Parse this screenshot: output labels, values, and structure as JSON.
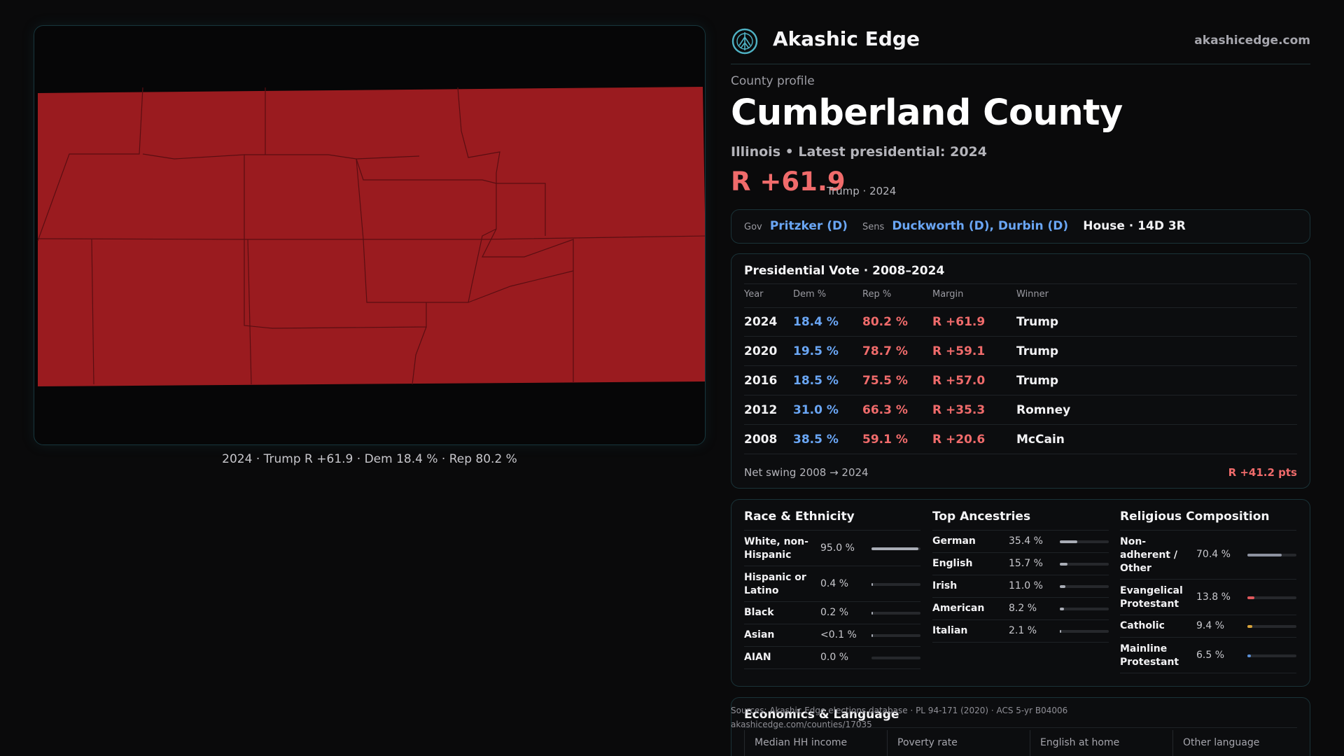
{
  "map": {
    "caption": "2024 · Trump R +61.9 · Dem 18.4 % · Rep 80.2 %",
    "fill_color": "#9a1b1f"
  },
  "header": {
    "brand": "Akashic Edge",
    "site": "akashicedge.com",
    "logo_icon": "tree-globe-icon"
  },
  "profile": {
    "kicker": "County profile",
    "title": "Cumberland County",
    "subtitle": "Illinois • Latest presidential: 2024",
    "margin": "R +61.9",
    "margin_sub": "Trump · 2024"
  },
  "officials": {
    "gov_label": "Gov",
    "gov_value": "Pritzker (D)",
    "sens_label": "Sens",
    "sens_value": "Duckworth (D), Durbin (D)",
    "house": "House · 14D 3R"
  },
  "votes": {
    "title": "Presidential Vote · 2008–2024",
    "columns": [
      "Year",
      "Dem %",
      "Rep %",
      "Margin",
      "Winner"
    ],
    "rows": [
      {
        "year": "2024",
        "dem": "18.4 %",
        "rep": "80.2 %",
        "margin": "R +61.9",
        "winner": "Trump"
      },
      {
        "year": "2020",
        "dem": "19.5 %",
        "rep": "78.7 %",
        "margin": "R +59.1",
        "winner": "Trump"
      },
      {
        "year": "2016",
        "dem": "18.5 %",
        "rep": "75.5 %",
        "margin": "R +57.0",
        "winner": "Trump"
      },
      {
        "year": "2012",
        "dem": "31.0 %",
        "rep": "66.3 %",
        "margin": "R +35.3",
        "winner": "Romney"
      },
      {
        "year": "2008",
        "dem": "38.5 %",
        "rep": "59.1 %",
        "margin": "R +20.6",
        "winner": "McCain"
      }
    ],
    "swing_label": "Net swing 2008 → 2024",
    "swing_value": "R +41.2 pts"
  },
  "demographics": {
    "race": {
      "title": "Race & Ethnicity",
      "items": [
        {
          "label": "White, non-Hispanic",
          "value": "95.0 %",
          "pct": 95.0,
          "color": "#a9adb6"
        },
        {
          "label": "Hispanic or Latino",
          "value": "0.4 %",
          "pct": 0.4,
          "color": "#a9adb6"
        },
        {
          "label": "Black",
          "value": "0.2 %",
          "pct": 0.2,
          "color": "#a9adb6"
        },
        {
          "label": "Asian",
          "value": "<0.1 %",
          "pct": 0.05,
          "color": "#a9adb6"
        },
        {
          "label": "AIAN",
          "value": "0.0 %",
          "pct": 0.0,
          "color": "#a9adb6"
        }
      ]
    },
    "ancestry": {
      "title": "Top Ancestries",
      "items": [
        {
          "label": "German",
          "value": "35.4 %",
          "pct": 35.4,
          "color": "#a9adb6"
        },
        {
          "label": "English",
          "value": "15.7 %",
          "pct": 15.7,
          "color": "#a9adb6"
        },
        {
          "label": "Irish",
          "value": "11.0 %",
          "pct": 11.0,
          "color": "#a9adb6"
        },
        {
          "label": "American",
          "value": "8.2 %",
          "pct": 8.2,
          "color": "#a9adb6"
        },
        {
          "label": "Italian",
          "value": "2.1 %",
          "pct": 2.1,
          "color": "#a9adb6"
        }
      ]
    },
    "religion": {
      "title": "Religious Composition",
      "items": [
        {
          "label": "Non-adherent / Other",
          "value": "70.4 %",
          "pct": 70.4,
          "color": "#8d92a0"
        },
        {
          "label": "Evangelical Protestant",
          "value": "13.8 %",
          "pct": 13.8,
          "color": "#e0585c"
        },
        {
          "label": "Catholic",
          "value": "9.4 %",
          "pct": 9.4,
          "color": "#d8a33a"
        },
        {
          "label": "Mainline Protestant",
          "value": "6.5 %",
          "pct": 6.5,
          "color": "#5b8fd6"
        }
      ]
    }
  },
  "economics": {
    "title": "Economics & Language",
    "cells": [
      "Median HH income",
      "Poverty rate",
      "English at home",
      "Other language"
    ]
  },
  "sources": {
    "line1": "Sources: Akashic Edge elections database · PL 94-171 (2020) · ACS 5-yr B04006",
    "line2": "akashicedge.com/counties/17035"
  }
}
